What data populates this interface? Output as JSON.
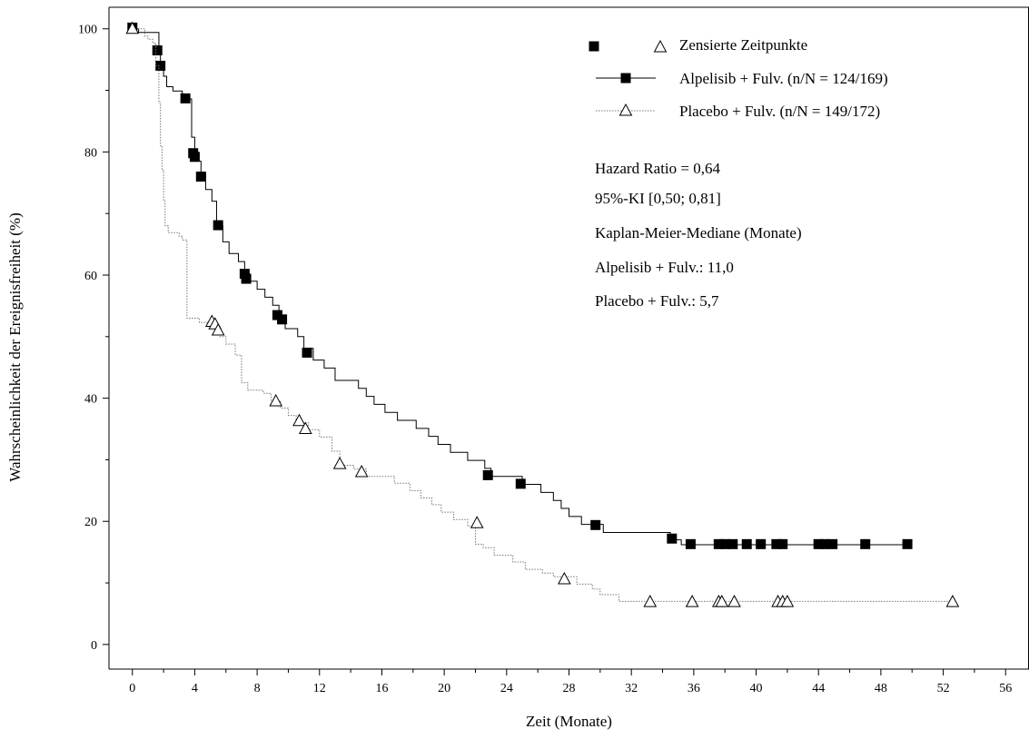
{
  "chart_data": {
    "type": "line",
    "xlabel": "Zeit (Monate)",
    "ylabel": "Wahrscheinlichkeit der Ereignisfreiheit (%)",
    "xlim": [
      -1.5,
      57.5
    ],
    "ylim": [
      -4,
      103.5
    ],
    "x_ticks": [
      "0",
      "4",
      "8",
      "12",
      "16",
      "20",
      "24",
      "28",
      "32",
      "36",
      "40",
      "44",
      "48",
      "52",
      "56"
    ],
    "y_ticks": [
      "0",
      "20",
      "40",
      "60",
      "80",
      "100"
    ],
    "grid": false,
    "legend_position": "top-right",
    "legend": {
      "censored_label": "Zensierte Zeitpunkte",
      "entries": [
        "Alpelisib + Fulv. (n/N = 124/169)",
        "Placebo + Fulv. (n/N = 149/172)"
      ]
    },
    "annotations": [
      "Hazard Ratio = 0,64",
      "95%-KI [0,50; 0,81]",
      "Kaplan-Meier-Mediane (Monate)",
      "Alpelisib + Fulv.: 11,0",
      "Placebo + Fulv.: 5,7"
    ],
    "series": [
      {
        "name": "Alpelisib + Fulv. (n/N = 124/169)",
        "style": "solid",
        "color": "#000000",
        "marker": "filled-square",
        "steps": [
          [
            0,
            100
          ],
          [
            0.4,
            99.4
          ],
          [
            1.4,
            99.4
          ],
          [
            1.7,
            96.4
          ],
          [
            1.8,
            94
          ],
          [
            2.0,
            92.3
          ],
          [
            2.2,
            90.6
          ],
          [
            2.6,
            89.9
          ],
          [
            3.2,
            89.2
          ],
          [
            3.6,
            88.6
          ],
          [
            3.8,
            82.4
          ],
          [
            4.0,
            79.8
          ],
          [
            4.2,
            78.5
          ],
          [
            4.4,
            76.5
          ],
          [
            4.7,
            73.9
          ],
          [
            5.1,
            72.0
          ],
          [
            5.4,
            68.0
          ],
          [
            5.8,
            65.4
          ],
          [
            6.2,
            63.5
          ],
          [
            6.8,
            62.2
          ],
          [
            7.2,
            60.3
          ],
          [
            7.5,
            59.0
          ],
          [
            8.0,
            57.7
          ],
          [
            8.5,
            56.4
          ],
          [
            9.0,
            55.1
          ],
          [
            9.4,
            53.2
          ],
          [
            9.8,
            51.3
          ],
          [
            10.6,
            50.0
          ],
          [
            11.0,
            48.1
          ],
          [
            11.6,
            46.2
          ],
          [
            12.3,
            44.9
          ],
          [
            13.0,
            42.9
          ],
          [
            14.5,
            41.6
          ],
          [
            15.0,
            40.3
          ],
          [
            15.5,
            39.0
          ],
          [
            16.2,
            37.7
          ],
          [
            17.0,
            36.4
          ],
          [
            18.2,
            35.1
          ],
          [
            19.0,
            33.8
          ],
          [
            19.6,
            32.5
          ],
          [
            20.4,
            31.2
          ],
          [
            21.5,
            29.9
          ],
          [
            22.6,
            28.6
          ],
          [
            23.0,
            27.3
          ],
          [
            25.0,
            26.0
          ],
          [
            26.2,
            24.7
          ],
          [
            27.0,
            23.4
          ],
          [
            27.5,
            22.1
          ],
          [
            28.0,
            20.8
          ],
          [
            28.8,
            19.5
          ],
          [
            30.2,
            18.2
          ],
          [
            34.5,
            17.0
          ],
          [
            35.2,
            16.2
          ],
          [
            49.8,
            16.2
          ]
        ],
        "censored": [
          [
            0,
            100.2
          ],
          [
            1.6,
            96.5
          ],
          [
            1.8,
            94.0
          ],
          [
            3.4,
            88.7
          ],
          [
            3.9,
            79.8
          ],
          [
            4.0,
            79.2
          ],
          [
            4.4,
            76.0
          ],
          [
            5.5,
            68.1
          ],
          [
            7.2,
            60.2
          ],
          [
            7.3,
            59.4
          ],
          [
            9.3,
            53.5
          ],
          [
            9.6,
            52.8
          ],
          [
            11.2,
            47.4
          ],
          [
            22.8,
            27.5
          ],
          [
            24.9,
            26.1
          ],
          [
            29.7,
            19.4
          ],
          [
            34.6,
            17.2
          ],
          [
            35.8,
            16.3
          ],
          [
            37.6,
            16.3
          ],
          [
            38.0,
            16.3
          ],
          [
            38.5,
            16.3
          ],
          [
            39.4,
            16.3
          ],
          [
            40.3,
            16.3
          ],
          [
            41.3,
            16.3
          ],
          [
            41.7,
            16.3
          ],
          [
            44.0,
            16.3
          ],
          [
            44.4,
            16.3
          ],
          [
            44.9,
            16.3
          ],
          [
            47.0,
            16.3
          ],
          [
            49.7,
            16.3
          ]
        ]
      },
      {
        "name": "Placebo + Fulv. (n/N = 149/172)",
        "style": "dotted",
        "color": "#777777",
        "marker": "open-triangle",
        "steps": [
          [
            0,
            100
          ],
          [
            0.8,
            98.8
          ],
          [
            1.0,
            98.3
          ],
          [
            1.3,
            97.7
          ],
          [
            1.5,
            94.0
          ],
          [
            1.7,
            88.0
          ],
          [
            1.8,
            81.0
          ],
          [
            1.9,
            77.0
          ],
          [
            2.0,
            72.0
          ],
          [
            2.1,
            68.0
          ],
          [
            2.3,
            66.9
          ],
          [
            3.0,
            66.3
          ],
          [
            3.2,
            65.7
          ],
          [
            3.5,
            53.0
          ],
          [
            4.3,
            52.3
          ],
          [
            5.0,
            51.7
          ],
          [
            5.6,
            50.0
          ],
          [
            6.0,
            48.8
          ],
          [
            6.6,
            47.0
          ],
          [
            7.0,
            42.5
          ],
          [
            7.4,
            41.3
          ],
          [
            8.4,
            40.8
          ],
          [
            8.9,
            39.5
          ],
          [
            9.5,
            38.4
          ],
          [
            10.0,
            37.2
          ],
          [
            10.5,
            36.0
          ],
          [
            11.3,
            34.9
          ],
          [
            12.0,
            33.7
          ],
          [
            12.8,
            31.4
          ],
          [
            13.3,
            29.1
          ],
          [
            14.2,
            28.5
          ],
          [
            15.0,
            27.3
          ],
          [
            16.8,
            26.2
          ],
          [
            17.8,
            25.0
          ],
          [
            18.5,
            23.8
          ],
          [
            19.2,
            22.7
          ],
          [
            19.8,
            21.5
          ],
          [
            20.6,
            20.3
          ],
          [
            21.5,
            19.2
          ],
          [
            22.0,
            16.3
          ],
          [
            22.5,
            15.7
          ],
          [
            23.2,
            14.5
          ],
          [
            24.4,
            13.4
          ],
          [
            25.2,
            12.2
          ],
          [
            26.3,
            11.6
          ],
          [
            27.0,
            11.0
          ],
          [
            28.5,
            9.8
          ],
          [
            29.5,
            9.0
          ],
          [
            30.0,
            8.1
          ],
          [
            31.2,
            7.0
          ],
          [
            52.6,
            7.0
          ]
        ],
        "censored": [
          [
            0,
            100.0
          ],
          [
            5.1,
            52.4
          ],
          [
            5.3,
            52.0
          ],
          [
            5.5,
            51.0
          ],
          [
            9.2,
            39.5
          ],
          [
            10.7,
            36.3
          ],
          [
            11.1,
            35.0
          ],
          [
            13.3,
            29.3
          ],
          [
            14.7,
            28.0
          ],
          [
            22.1,
            19.7
          ],
          [
            27.7,
            10.6
          ],
          [
            33.2,
            6.9
          ],
          [
            35.9,
            6.9
          ],
          [
            37.6,
            6.9
          ],
          [
            37.8,
            6.9
          ],
          [
            38.6,
            6.9
          ],
          [
            41.4,
            6.9
          ],
          [
            41.7,
            6.9
          ],
          [
            42.0,
            6.9
          ],
          [
            52.6,
            6.9
          ]
        ]
      }
    ]
  }
}
